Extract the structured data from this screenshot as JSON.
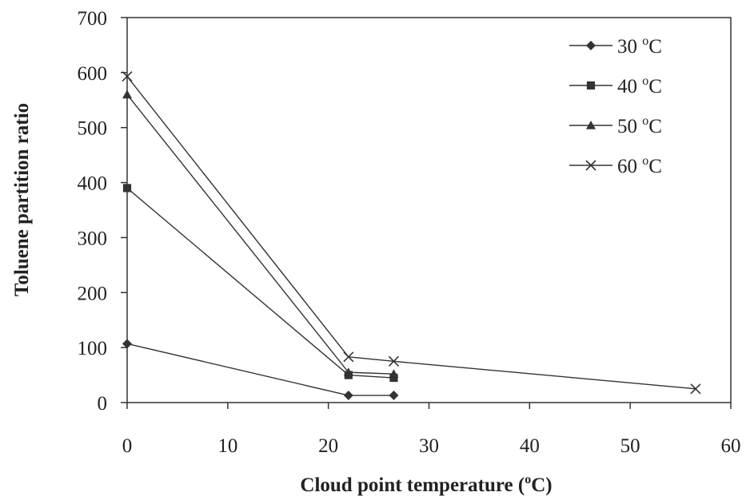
{
  "chart_data": {
    "type": "line",
    "title": "",
    "xlabel": {
      "prefix": "Cloud point temperature (",
      "sup": "o",
      "suffix": "C)"
    },
    "ylabel": "Toluene partition ratio",
    "xlim": [
      0,
      60
    ],
    "ylim": [
      0,
      700
    ],
    "xticks": [
      "0",
      "10",
      "20",
      "30",
      "40",
      "50",
      "60"
    ],
    "yticks": [
      "0",
      "100",
      "200",
      "300",
      "400",
      "500",
      "600",
      "700"
    ],
    "grid": false,
    "legend_position": "top-right",
    "series": [
      {
        "name": "30",
        "unit_sup": "o",
        "unit": "C",
        "marker": "diamond",
        "x": [
          0,
          22,
          26.5
        ],
        "y": [
          107,
          13,
          13
        ]
      },
      {
        "name": "40",
        "unit_sup": "o",
        "unit": "C",
        "marker": "square",
        "x": [
          0,
          22,
          26.5
        ],
        "y": [
          390,
          50,
          45
        ]
      },
      {
        "name": "50",
        "unit_sup": "o",
        "unit": "C",
        "marker": "triangle",
        "x": [
          0,
          22,
          26.5
        ],
        "y": [
          560,
          55,
          52
        ]
      },
      {
        "name": "60",
        "unit_sup": "o",
        "unit": "C",
        "marker": "x",
        "x": [
          0,
          22,
          26.5,
          56.5
        ],
        "y": [
          593,
          83,
          75,
          25
        ]
      }
    ]
  }
}
